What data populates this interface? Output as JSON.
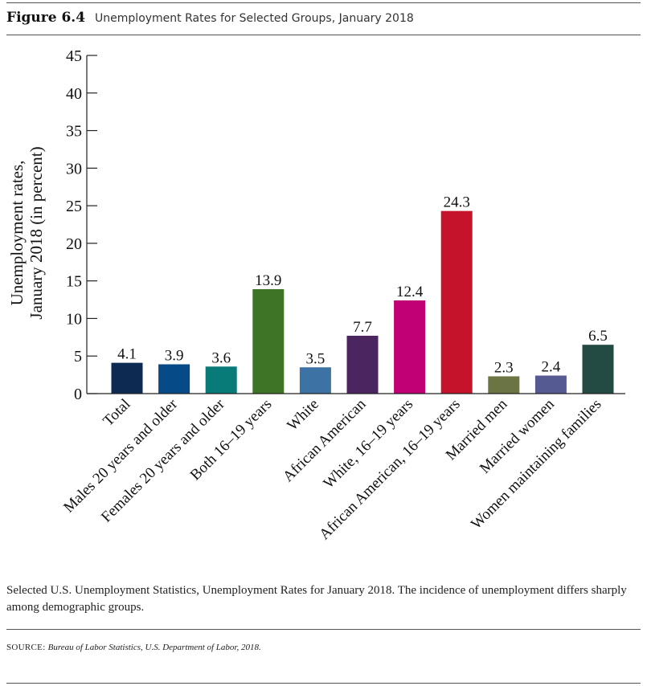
{
  "figure": {
    "label": "Figure 6.4",
    "title": "Unemployment Rates for Selected Groups, January 2018"
  },
  "caption": "Selected U.S. Unemployment Statistics, Unemployment Rates for January 2018. The incidence of unemployment differs sharply among demographic groups.",
  "source": {
    "label": "SOURCE: ",
    "text": "Bureau of Labor Statistics, U.S. Department of Labor, 2018."
  },
  "chart_data": {
    "type": "bar",
    "title": "",
    "xlabel": "",
    "ylabel": [
      "Unemployment rates,",
      "January 2018 (in percent)"
    ],
    "ylim": [
      0,
      45
    ],
    "yticks": [
      0,
      5,
      10,
      15,
      20,
      25,
      30,
      35,
      40,
      45
    ],
    "grid": false,
    "categories": [
      "Total",
      "Males 20 years and older",
      "Females 20 years and older",
      "Both 16–19 years",
      "White",
      "African American",
      "White, 16–19 years",
      "African American, 16–19 years",
      "Married men",
      "Married women",
      "Women maintaining families"
    ],
    "values": [
      4.1,
      3.9,
      3.6,
      13.9,
      3.5,
      7.7,
      12.4,
      24.3,
      2.3,
      2.4,
      6.5
    ],
    "data_labels": [
      "4.1",
      "3.9",
      "3.6",
      "13.9",
      "3.5",
      "7.7",
      "12.4",
      "24.3",
      "2.3",
      "2.4",
      "6.5"
    ],
    "colors": [
      "#0d2a52",
      "#064b87",
      "#087a78",
      "#3d7425",
      "#3d72a4",
      "#4a2560",
      "#c00074",
      "#c4132b",
      "#6b7443",
      "#555a92",
      "#234b44"
    ]
  }
}
